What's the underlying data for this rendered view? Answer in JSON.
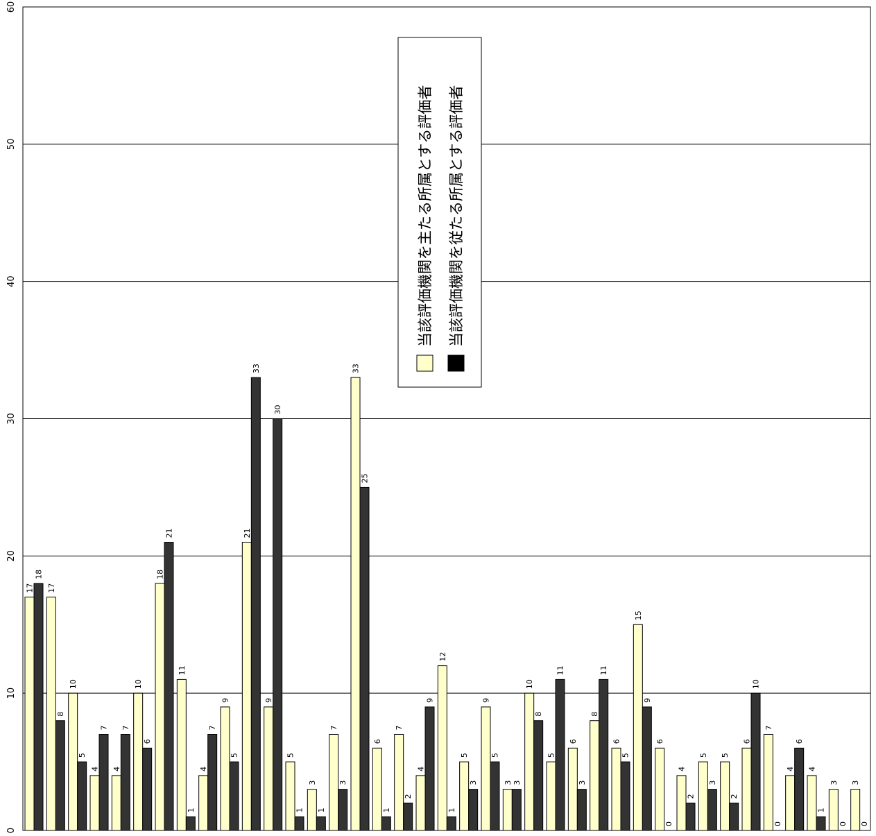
{
  "chart_data": {
    "type": "bar",
    "orientation": "rotated-90",
    "ylim": [
      0,
      60
    ],
    "yticks": [
      "0",
      "10",
      "20",
      "30",
      "40",
      "50",
      "60"
    ],
    "grid": true,
    "legend_position": "top-center",
    "series": [
      {
        "name": "当該評価機関を主たる所属とする評価者",
        "color": "#ffffcc",
        "values": [
          17,
          17,
          10,
          4,
          4,
          10,
          18,
          11,
          4,
          9,
          21,
          9,
          5,
          3,
          7,
          33,
          6,
          7,
          4,
          12,
          5,
          9,
          3,
          10,
          5,
          6,
          8,
          6,
          15,
          6,
          4,
          5,
          5,
          6,
          7,
          4,
          4,
          3,
          3
        ]
      },
      {
        "name": "当該評価機関を従たる所属とする評価者",
        "color": "#333333",
        "values": [
          18,
          8,
          5,
          7,
          7,
          6,
          21,
          1,
          7,
          5,
          33,
          30,
          1,
          1,
          3,
          25,
          1,
          2,
          9,
          1,
          3,
          5,
          3,
          8,
          11,
          3,
          11,
          5,
          9,
          0,
          2,
          3,
          2,
          10,
          0,
          6,
          1,
          0,
          0
        ]
      }
    ]
  }
}
